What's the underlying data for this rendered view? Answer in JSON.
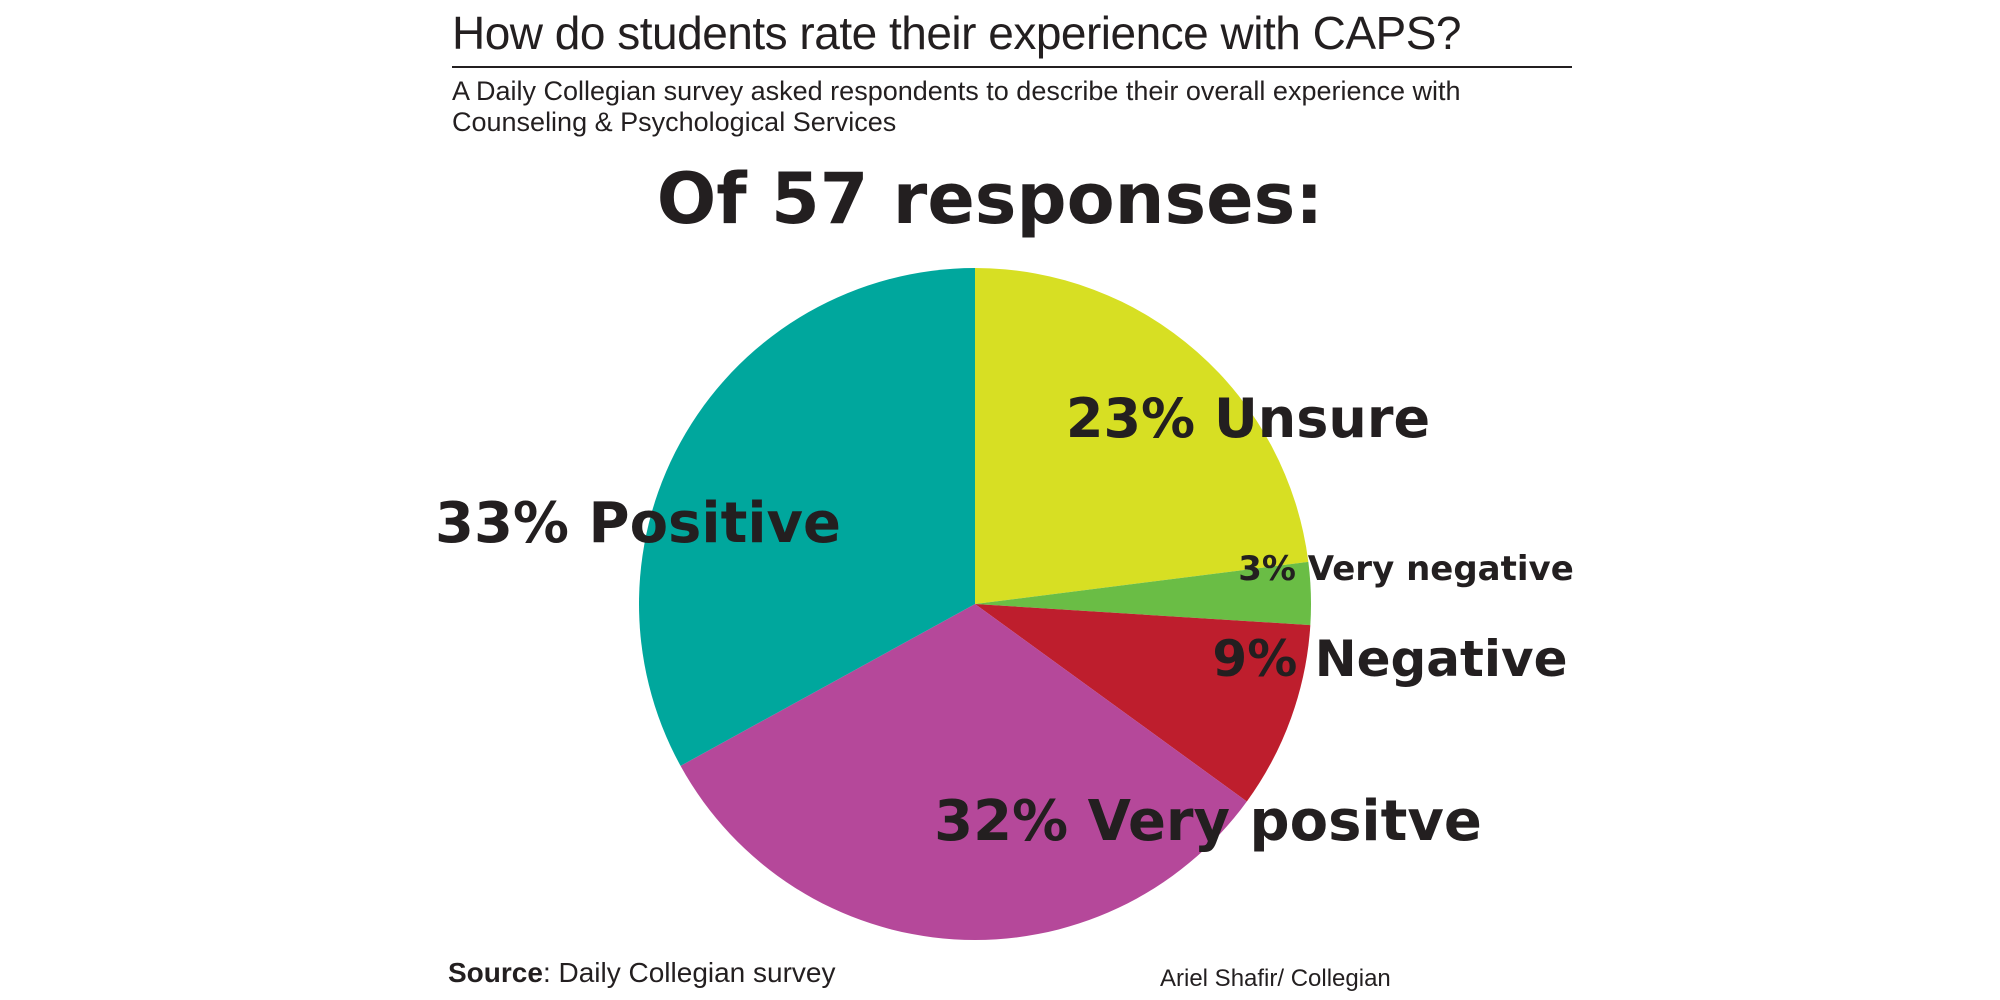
{
  "header": {
    "title": "How do students rate their experience with CAPS?",
    "subtitle": "A Daily Collegian survey asked respondents to describe their overall experience with Counseling & Psychological Services"
  },
  "heading": "Of 57 responses:",
  "chart_data": {
    "type": "pie",
    "start": "12 o'clock",
    "direction": "clockwise",
    "slices": [
      {
        "label": "23% Unsure",
        "value": 23,
        "color": "#d7df23"
      },
      {
        "label": "3% Very negative",
        "value": 3,
        "color": "#6abd45"
      },
      {
        "label": "9% Negative",
        "value": 9,
        "color": "#be1e2d"
      },
      {
        "label": "32% Very positve",
        "value": 32,
        "color": "#b5489a"
      },
      {
        "label": "33% Positive",
        "value": 33,
        "color": "#00a79d"
      }
    ]
  },
  "footer": {
    "source_label": "Source",
    "source_text": ": Daily Collegian survey",
    "credit": "Ariel Shafir/ Collegian"
  }
}
